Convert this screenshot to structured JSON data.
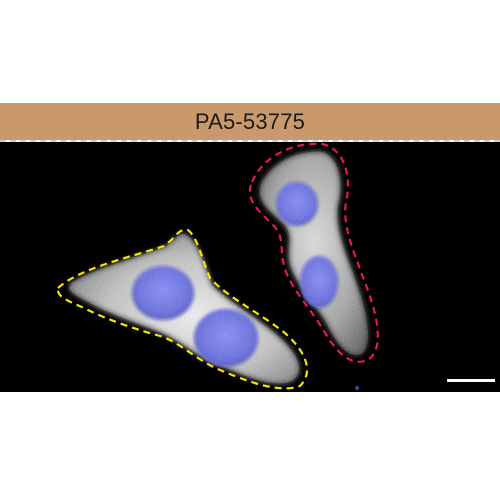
{
  "panel": {
    "label": "PA5-53775"
  },
  "image": {
    "background_color": "#000000",
    "label_bar_color": "#c9996b",
    "cytoplasm_color": "#d9d9d9",
    "nucleus_color": "#5c63d8",
    "outline_colors": {
      "left_cells": "#f2e600",
      "right_cells": "#e6145a"
    },
    "scale_bar_color": "#ffffff"
  }
}
